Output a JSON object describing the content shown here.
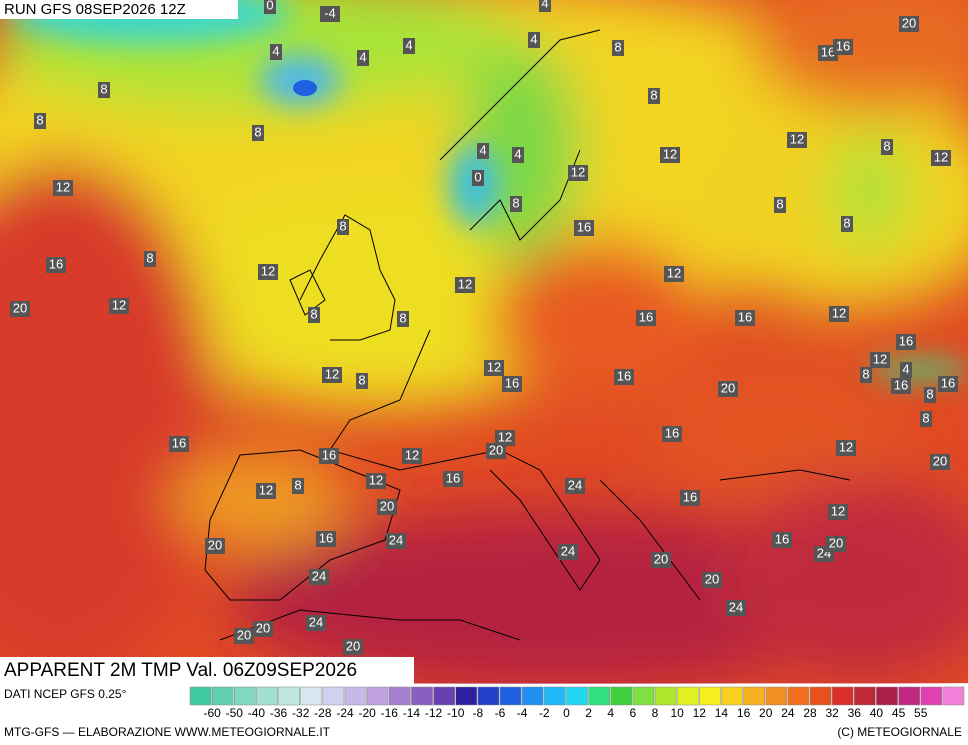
{
  "header": {
    "run": "RUN GFS 08SEP2026 12Z"
  },
  "title": "APPARENT 2M TMP Val. 06Z09SEP2026",
  "source": "DATI NCEP GFS 0.25°",
  "credit_left": "MTG-GFS — ELABORAZIONE WWW.METEOGIORNALE.IT",
  "credit_right": "(C) METEOGIORNALE",
  "legend": {
    "ticks": [
      -60,
      -50,
      -40,
      -36,
      -32,
      -28,
      -24,
      -20,
      -16,
      -14,
      -12,
      -10,
      -8,
      -6,
      -4,
      -2,
      0,
      2,
      4,
      6,
      8,
      10,
      12,
      14,
      16,
      20,
      24,
      28,
      32,
      36,
      40,
      45,
      55
    ],
    "colors": [
      "#40c8a0",
      "#60d0b0",
      "#80d8c0",
      "#a0e0d0",
      "#c0e8e0",
      "#d8e8f0",
      "#d0d0f0",
      "#c8b8e8",
      "#c0a0e0",
      "#a880d0",
      "#8860c0",
      "#6840b0",
      "#3020a0",
      "#2040c8",
      "#2060e0",
      "#2090f0",
      "#20b8f8",
      "#20d8f0",
      "#30e080",
      "#40d040",
      "#80e040",
      "#b0e830",
      "#e0f020",
      "#f8f020",
      "#f8d020",
      "#f8b020",
      "#f09020",
      "#f07020",
      "#e85020",
      "#d83028",
      "#c02838",
      "#a82048",
      "#c02880",
      "#e040b0",
      "#f080d8"
    ]
  },
  "map_labels": [
    0,
    -4,
    4,
    4,
    4,
    4,
    4,
    8,
    8,
    8,
    8,
    8,
    12,
    4,
    4,
    0,
    8,
    12,
    12,
    12,
    8,
    12,
    8,
    8,
    20,
    16,
    16,
    8,
    8,
    16,
    12,
    12,
    16,
    12,
    12,
    20,
    8,
    8,
    16,
    16,
    12,
    16,
    12,
    4,
    8,
    16,
    16,
    8,
    8,
    12,
    16,
    16,
    12,
    8,
    20,
    16,
    16,
    12,
    12,
    20,
    16,
    12,
    20,
    16,
    12,
    24,
    12,
    8,
    20,
    16,
    12,
    16,
    24,
    20,
    24,
    20,
    16,
    24,
    20,
    24,
    20,
    24,
    24,
    20,
    20,
    20
  ]
}
